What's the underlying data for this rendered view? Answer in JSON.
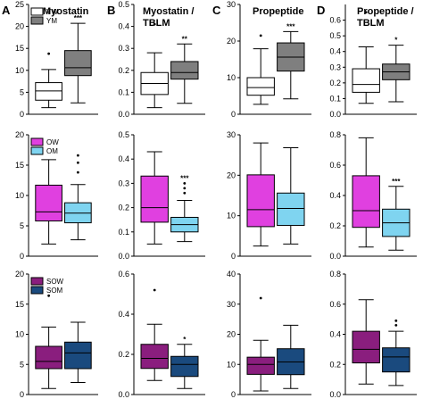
{
  "figure": {
    "panel_letters": [
      "A",
      "B",
      "C",
      "D"
    ],
    "column_titles": [
      [
        "Myostatin"
      ],
      [
        "Myostatin /",
        "TBLM"
      ],
      [
        "Propeptide"
      ],
      [
        "Propeptide /",
        "TBLM"
      ]
    ]
  },
  "chart_data": [
    {
      "type": "box",
      "column": "A",
      "row": 1,
      "ylim": [
        0,
        25
      ],
      "ticks": [
        0,
        5,
        10,
        15,
        20,
        25
      ],
      "legend": [
        "YW",
        "YM"
      ],
      "series": [
        {
          "name": "YW",
          "color": "#ffffff",
          "min": 1.5,
          "q1": 3.2,
          "median": 5.3,
          "q3": 7.2,
          "max": 10.2,
          "outliers": [
            13.8
          ]
        },
        {
          "name": "YM",
          "color": "#7f7f7f",
          "min": 2.6,
          "q1": 8.8,
          "median": 10.6,
          "q3": 14.5,
          "max": 20.7,
          "outliers": [],
          "sig": "***"
        }
      ]
    },
    {
      "type": "box",
      "column": "B",
      "row": 1,
      "ylim": [
        0,
        0.5
      ],
      "ticks": [
        "0.0",
        "0.1",
        "0.2",
        "0.3",
        "0.4",
        "0.5"
      ],
      "legend": [],
      "series": [
        {
          "name": "YW",
          "color": "#ffffff",
          "min": 0.03,
          "q1": 0.09,
          "median": 0.14,
          "q3": 0.19,
          "max": 0.28,
          "outliers": [
            0.41
          ]
        },
        {
          "name": "YM",
          "color": "#7f7f7f",
          "min": 0.05,
          "q1": 0.16,
          "median": 0.19,
          "q3": 0.24,
          "max": 0.32,
          "outliers": [],
          "sig": "**"
        }
      ]
    },
    {
      "type": "box",
      "column": "C",
      "row": 1,
      "ylim": [
        0,
        30
      ],
      "ticks": [
        0,
        10,
        20,
        30
      ],
      "legend": [],
      "series": [
        {
          "name": "YW",
          "color": "#ffffff",
          "min": 2.7,
          "q1": 5.2,
          "median": 7.3,
          "q3": 10.0,
          "max": 17.9,
          "outliers": [
            21.5
          ]
        },
        {
          "name": "YM",
          "color": "#7f7f7f",
          "min": 4.2,
          "q1": 11.8,
          "median": 15.6,
          "q3": 19.5,
          "max": 22.6,
          "outliers": [],
          "sig": "***"
        }
      ]
    },
    {
      "type": "box",
      "column": "D",
      "row": 1,
      "ylim": [
        0,
        0.7
      ],
      "ticks": [
        "0.0",
        "0.1",
        "0.2",
        "0.3",
        "0.4",
        "0.5",
        "0.6"
      ],
      "legend": [],
      "series": [
        {
          "name": "YW",
          "color": "#ffffff",
          "min": 0.07,
          "q1": 0.14,
          "median": 0.19,
          "q3": 0.29,
          "max": 0.43,
          "outliers": [
            0.65
          ]
        },
        {
          "name": "YM",
          "color": "#7f7f7f",
          "min": 0.08,
          "q1": 0.22,
          "median": 0.27,
          "q3": 0.32,
          "max": 0.44,
          "outliers": [],
          "sig": "*"
        }
      ]
    },
    {
      "type": "box",
      "column": "A",
      "row": 2,
      "ylim": [
        0,
        20
      ],
      "ticks": [
        0,
        5,
        10,
        15,
        20
      ],
      "legend": [
        "OW",
        "OM"
      ],
      "series": [
        {
          "name": "OW",
          "color": "#e040e0",
          "min": 2.0,
          "q1": 5.8,
          "median": 7.3,
          "q3": 11.7,
          "max": 15.9,
          "outliers": []
        },
        {
          "name": "OM",
          "color": "#7fd4f0",
          "min": 2.7,
          "q1": 5.5,
          "median": 7.1,
          "q3": 8.8,
          "max": 11.8,
          "outliers": [
            13.8,
            15.4,
            16.6
          ]
        }
      ]
    },
    {
      "type": "box",
      "column": "B",
      "row": 2,
      "ylim": [
        0,
        0.5
      ],
      "ticks": [
        "0.0",
        "0.1",
        "0.2",
        "0.3",
        "0.4",
        "0.5"
      ],
      "legend": [],
      "series": [
        {
          "name": "OW",
          "color": "#e040e0",
          "min": 0.05,
          "q1": 0.14,
          "median": 0.2,
          "q3": 0.33,
          "max": 0.43,
          "outliers": []
        },
        {
          "name": "OM",
          "color": "#7fd4f0",
          "min": 0.06,
          "q1": 0.1,
          "median": 0.13,
          "q3": 0.16,
          "max": 0.23,
          "outliers": [
            0.26,
            0.28,
            0.3
          ],
          "sig": "***"
        }
      ]
    },
    {
      "type": "box",
      "column": "C",
      "row": 2,
      "ylim": [
        0,
        30
      ],
      "ticks": [
        0,
        10,
        20,
        30
      ],
      "legend": [],
      "series": [
        {
          "name": "OW",
          "color": "#e040e0",
          "min": 2.5,
          "q1": 7.3,
          "median": 11.5,
          "q3": 20.1,
          "max": 28.0,
          "outliers": []
        },
        {
          "name": "OM",
          "color": "#7fd4f0",
          "min": 3.0,
          "q1": 7.6,
          "median": 11.8,
          "q3": 15.6,
          "max": 26.8,
          "outliers": []
        }
      ]
    },
    {
      "type": "box",
      "column": "D",
      "row": 2,
      "ylim": [
        0,
        0.8
      ],
      "ticks": [
        "0.0",
        "0.2",
        "0.4",
        "0.6",
        "0.8"
      ],
      "legend": [],
      "series": [
        {
          "name": "OW",
          "color": "#e040e0",
          "min": 0.06,
          "q1": 0.19,
          "median": 0.3,
          "q3": 0.53,
          "max": 0.78,
          "outliers": []
        },
        {
          "name": "OM",
          "color": "#7fd4f0",
          "min": 0.04,
          "q1": 0.13,
          "median": 0.22,
          "q3": 0.31,
          "max": 0.46,
          "outliers": [],
          "sig": "***"
        }
      ]
    },
    {
      "type": "box",
      "column": "A",
      "row": 3,
      "ylim": [
        0,
        20
      ],
      "ticks": [
        0,
        5,
        10,
        15,
        20
      ],
      "legend": [
        "SOW",
        "SOM"
      ],
      "series": [
        {
          "name": "SOW",
          "color": "#8a1e7e",
          "min": 1.0,
          "q1": 4.3,
          "median": 5.5,
          "q3": 8.0,
          "max": 11.2,
          "outliers": [
            16.4
          ]
        },
        {
          "name": "SOM",
          "color": "#1a4a7e",
          "min": 2.0,
          "q1": 4.3,
          "median": 6.9,
          "q3": 8.7,
          "max": 12.0,
          "outliers": []
        }
      ]
    },
    {
      "type": "box",
      "column": "B",
      "row": 3,
      "ylim": [
        0,
        0.6
      ],
      "ticks": [
        "0.0",
        "0.2",
        "0.4",
        "0.6"
      ],
      "legend": [],
      "series": [
        {
          "name": "SOW",
          "color": "#8a1e7e",
          "min": 0.07,
          "q1": 0.13,
          "median": 0.18,
          "q3": 0.25,
          "max": 0.35,
          "outliers": [
            0.52
          ]
        },
        {
          "name": "SOM",
          "color": "#1a4a7e",
          "min": 0.03,
          "q1": 0.09,
          "median": 0.15,
          "q3": 0.19,
          "max": 0.25,
          "outliers": [],
          "sig": "*"
        }
      ]
    },
    {
      "type": "box",
      "column": "C",
      "row": 3,
      "ylim": [
        0,
        40
      ],
      "ticks": [
        0,
        10,
        20,
        30,
        40
      ],
      "legend": [],
      "series": [
        {
          "name": "SOW",
          "color": "#8a1e7e",
          "min": 1.2,
          "q1": 6.7,
          "median": 10.0,
          "q3": 12.4,
          "max": 18.0,
          "outliers": [
            32.0
          ]
        },
        {
          "name": "SOM",
          "color": "#1a4a7e",
          "min": 2.0,
          "q1": 6.6,
          "median": 10.8,
          "q3": 15.2,
          "max": 23.0,
          "outliers": []
        }
      ]
    },
    {
      "type": "box",
      "column": "D",
      "row": 3,
      "ylim": [
        0,
        0.8
      ],
      "ticks": [
        "0.0",
        "0.2",
        "0.4",
        "0.6",
        "0.8"
      ],
      "legend": [],
      "series": [
        {
          "name": "SOW",
          "color": "#8a1e7e",
          "min": 0.07,
          "q1": 0.21,
          "median": 0.3,
          "q3": 0.42,
          "max": 0.63,
          "outliers": []
        },
        {
          "name": "SOM",
          "color": "#1a4a7e",
          "min": 0.06,
          "q1": 0.15,
          "median": 0.25,
          "q3": 0.31,
          "max": 0.42,
          "outliers": [
            0.46,
            0.49
          ]
        }
      ]
    }
  ]
}
